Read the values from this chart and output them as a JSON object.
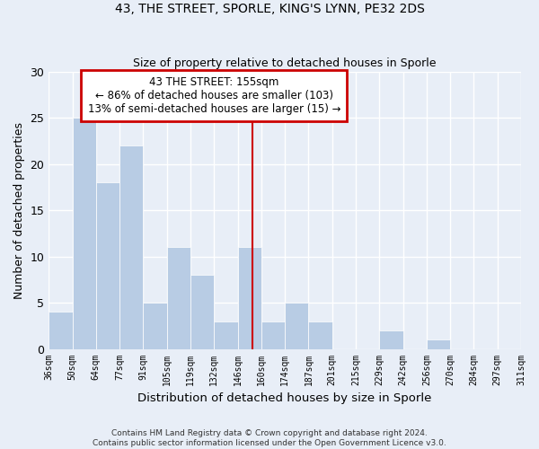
{
  "title": "43, THE STREET, SPORLE, KING'S LYNN, PE32 2DS",
  "subtitle": "Size of property relative to detached houses in Sporle",
  "xlabel": "Distribution of detached houses by size in Sporle",
  "ylabel": "Number of detached properties",
  "bin_labels": [
    "36sqm",
    "50sqm",
    "64sqm",
    "77sqm",
    "91sqm",
    "105sqm",
    "119sqm",
    "132sqm",
    "146sqm",
    "160sqm",
    "174sqm",
    "187sqm",
    "201sqm",
    "215sqm",
    "229sqm",
    "242sqm",
    "256sqm",
    "270sqm",
    "284sqm",
    "297sqm",
    "311sqm"
  ],
  "values": [
    4,
    25,
    18,
    22,
    5,
    11,
    8,
    3,
    11,
    3,
    5,
    3,
    0,
    0,
    2,
    0,
    1,
    0,
    0,
    0
  ],
  "bar_color": "#b8cce4",
  "bar_edge_color": "#b8cce4",
  "grid_color": "#d0daea",
  "bg_color": "#e8eef7",
  "annotation_title": "43 THE STREET: 155sqm",
  "annotation_line1": "← 86% of detached houses are smaller (103)",
  "annotation_line2": "13% of semi-detached houses are larger (15) →",
  "annotation_box_color": "#ffffff",
  "annotation_border_color": "#cc0000",
  "prop_line_color": "#cc0000",
  "ylim": [
    0,
    30
  ],
  "yticks": [
    0,
    5,
    10,
    15,
    20,
    25,
    30
  ],
  "footnote1": "Contains HM Land Registry data © Crown copyright and database right 2024.",
  "footnote2": "Contains public sector information licensed under the Open Government Licence v3.0."
}
